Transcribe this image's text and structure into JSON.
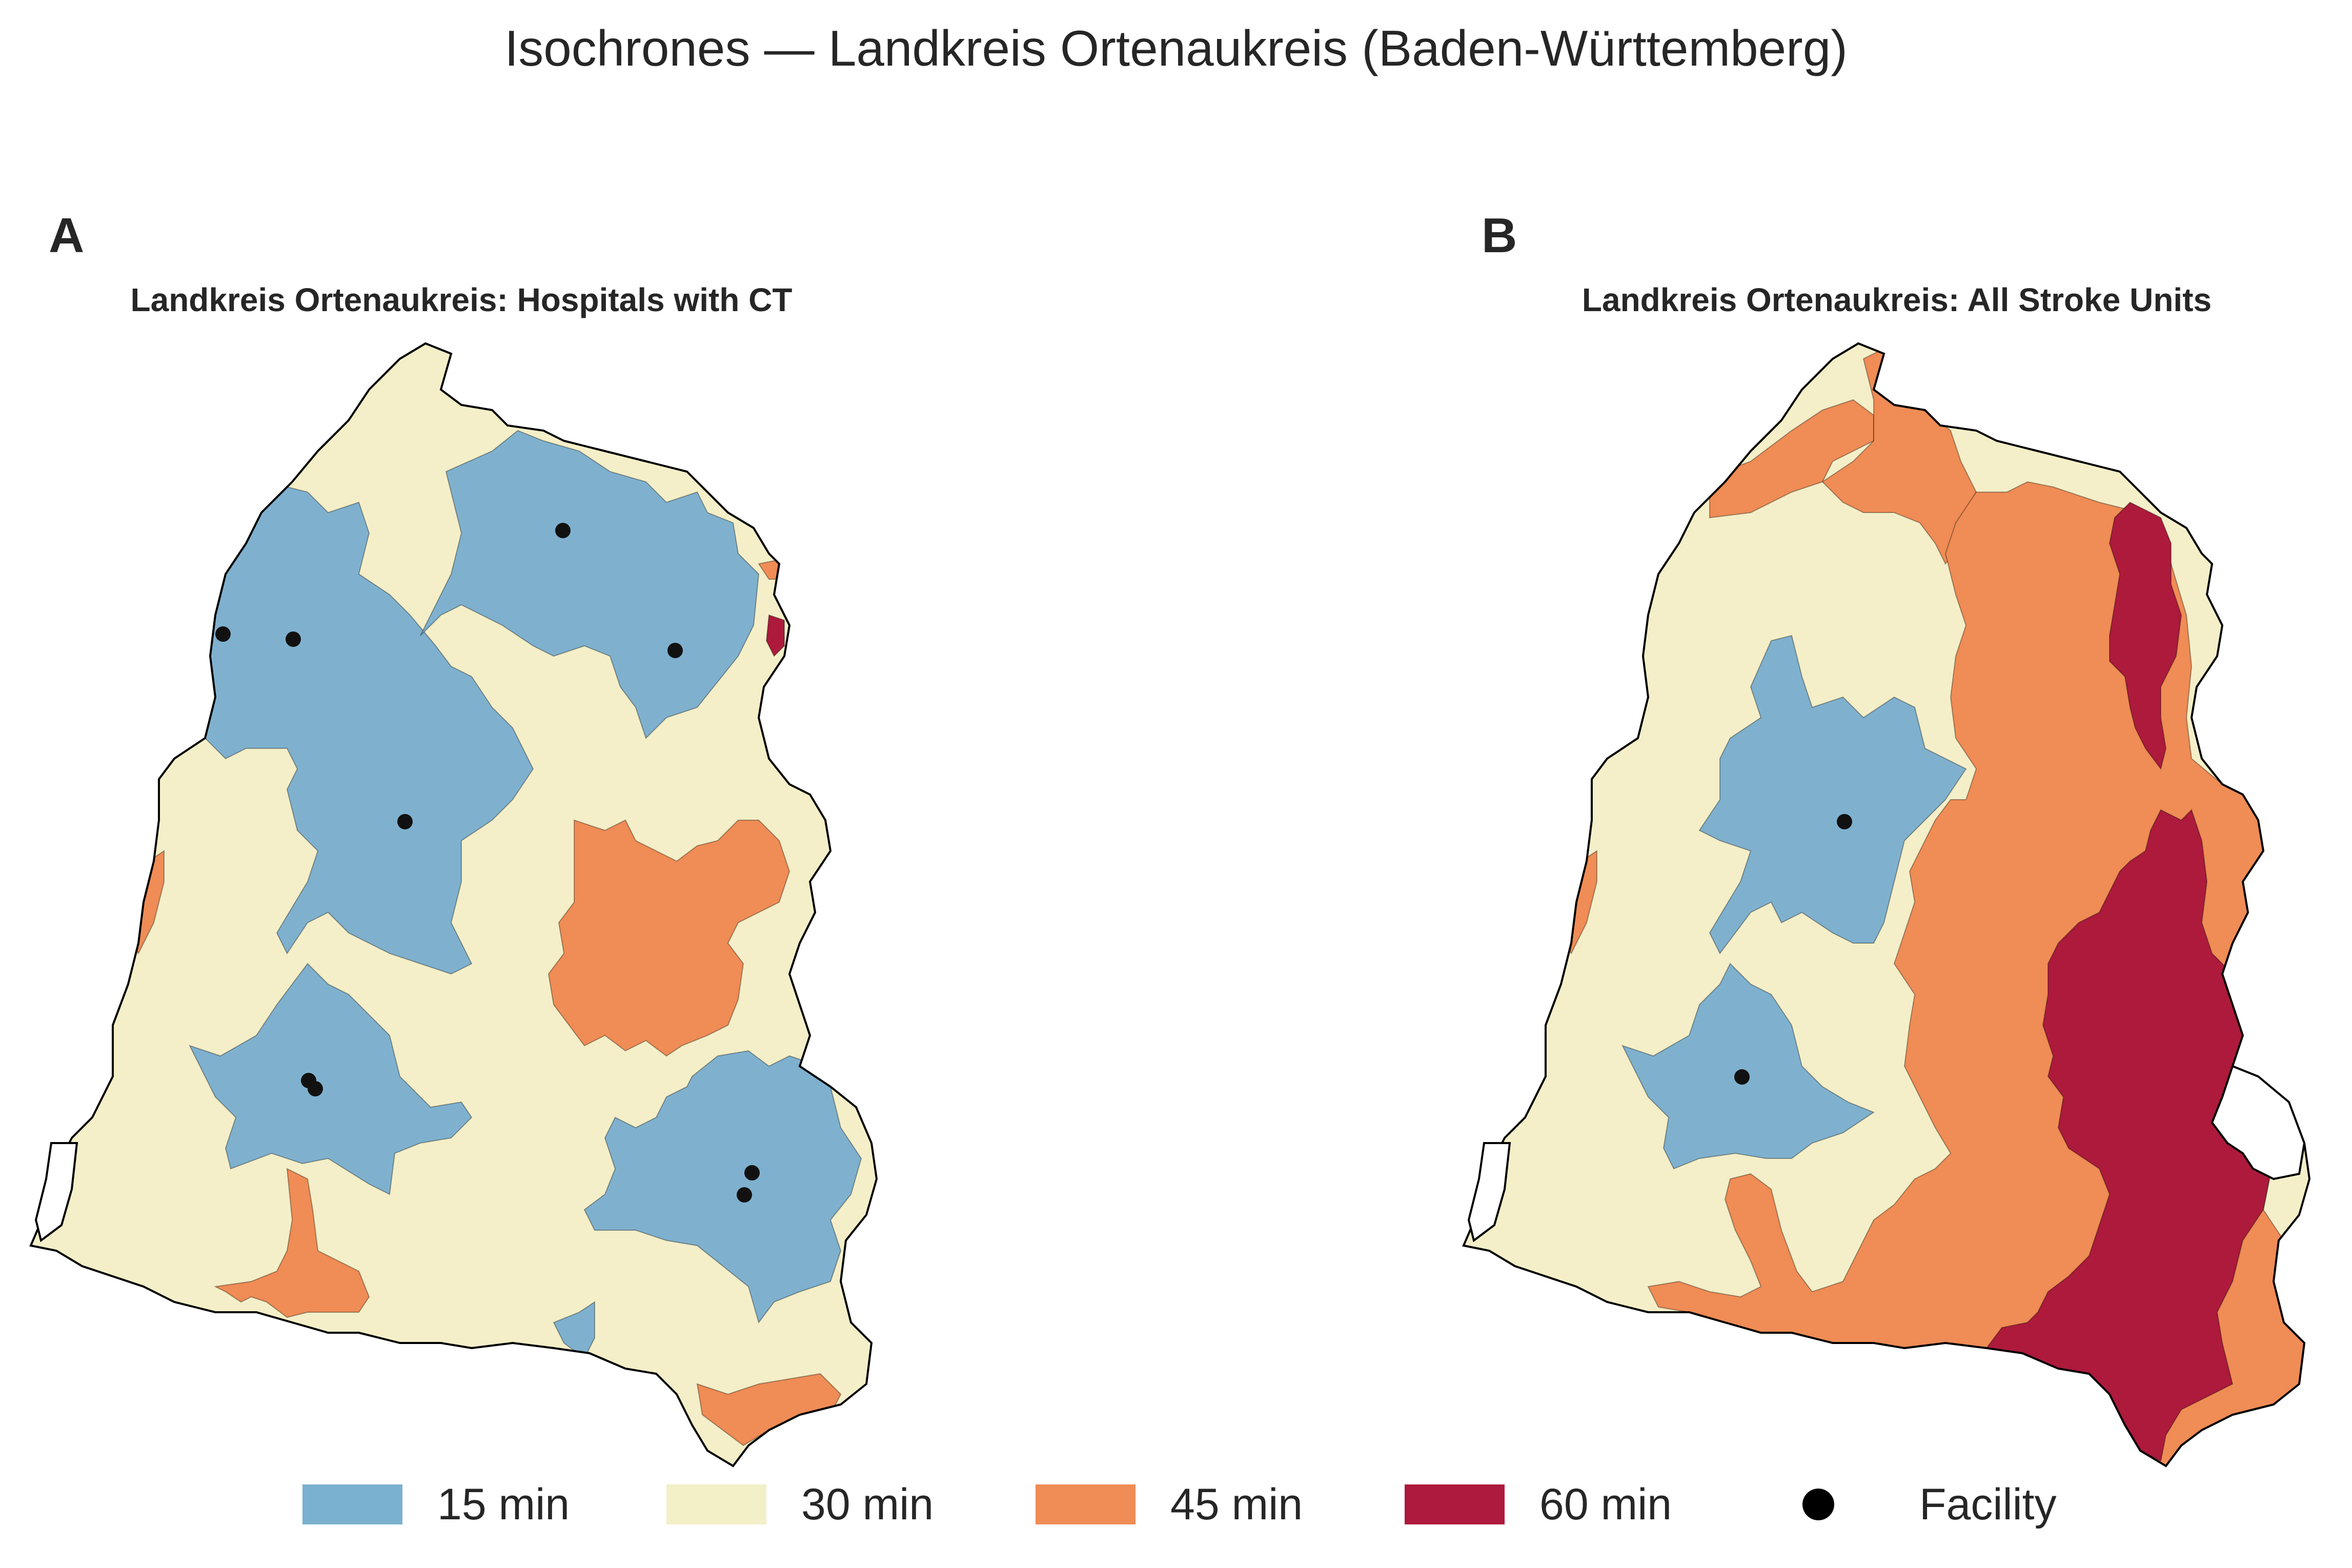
{
  "title": "Isochrones — Landkreis Ortenaukreis (Baden-Württemberg)",
  "panels": [
    {
      "letter": "A",
      "title": "Landkreis Ortenaukreis: Hospitals with CT"
    },
    {
      "letter": "B",
      "title": "Landkreis Ortenaukreis: All Stroke Units"
    }
  ],
  "legend": {
    "items": [
      {
        "label": "15 min",
        "color": "#7ab0d0"
      },
      {
        "label": "30 min",
        "color": "#f3efc7"
      },
      {
        "label": "45 min",
        "color": "#f08c55"
      },
      {
        "label": "60 min",
        "color": "#ae1a3d"
      }
    ],
    "facility_label": "Facility"
  },
  "colors": {
    "min15": "#7fb1cf",
    "min30": "#f4efc8",
    "min45": "#f08c55",
    "min60": "#ad1a3c",
    "facility": "#111111",
    "boundary": "#000000"
  }
}
